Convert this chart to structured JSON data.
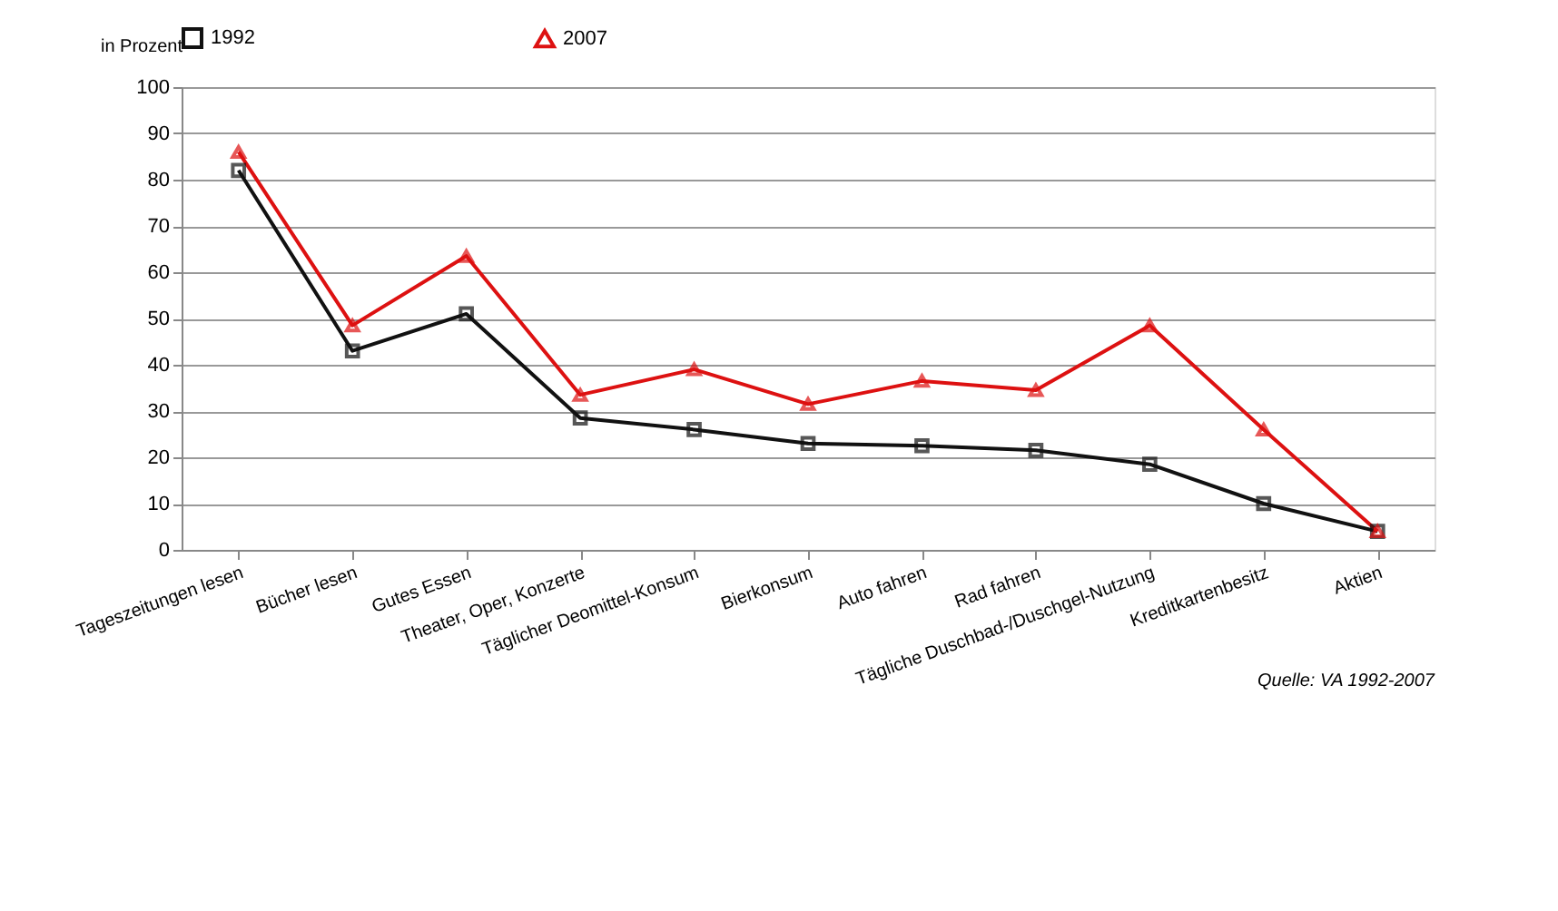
{
  "chart_data": {
    "type": "line",
    "ylabel": "in Prozent",
    "categories": [
      "Tageszeitungen lesen",
      "Bücher lesen",
      "Gutes Essen",
      "Theater, Oper, Konzerte",
      "Täglicher Deomittel-Konsum",
      "Bierkonsum",
      "Auto fahren",
      "Rad fahren",
      "Tägliche Duschbad-/Duschgel-Nutzung",
      "Kreditkartenbesitz",
      "Aktien"
    ],
    "series": [
      {
        "name": "1992",
        "color": "#111111",
        "marker": "square",
        "values": [
          82,
          43,
          51,
          28.5,
          26,
          23,
          22.5,
          21.5,
          18.5,
          10,
          4
        ]
      },
      {
        "name": "2007",
        "color": "#dd1111",
        "marker": "triangle",
        "values": [
          86,
          48.5,
          63.5,
          33.5,
          39,
          31.5,
          36.5,
          34.5,
          48.5,
          26,
          4
        ]
      }
    ],
    "ylim": [
      0,
      100
    ],
    "yticks": [
      0,
      10,
      20,
      30,
      40,
      50,
      60,
      70,
      80,
      90,
      100
    ],
    "grid": "y",
    "legend": "top",
    "line_style": "solid",
    "annotations": [
      "Quelle: VA 1992-2007"
    ]
  }
}
